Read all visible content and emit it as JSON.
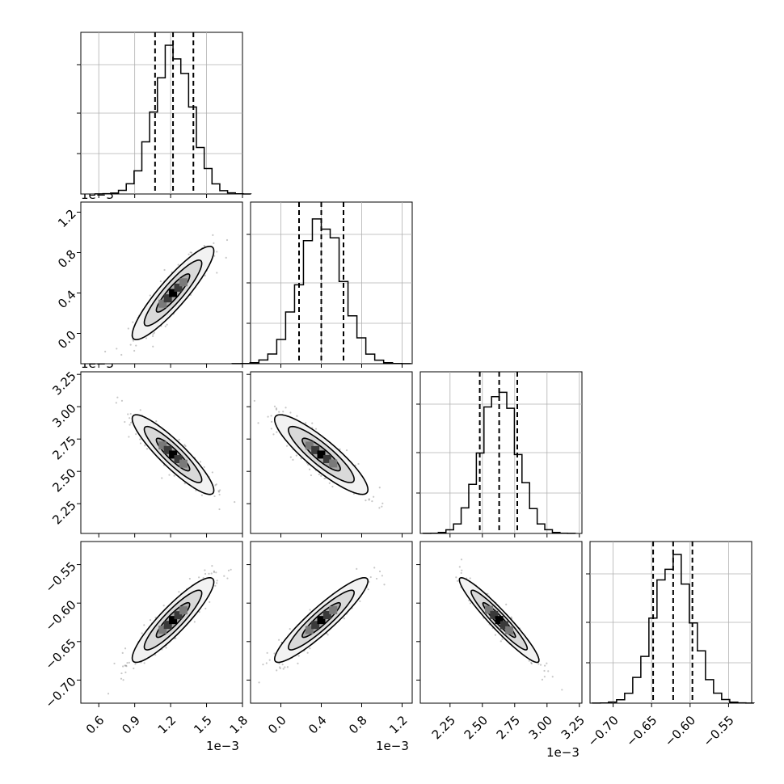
{
  "chart_data": {
    "type": "corner",
    "n_params": 4,
    "offset_labels": {
      "p0": "1e−3",
      "p1": "1e−3",
      "p2": "1e−3",
      "p3": ""
    },
    "ranges": [
      [
        0.45,
        1.8
      ],
      [
        -0.3,
        1.3
      ],
      [
        2.02,
        3.27
      ],
      [
        -0.73,
        -0.52
      ]
    ],
    "ticks": [
      {
        "values": [
          0.6,
          0.9,
          1.2,
          1.5,
          1.8
        ],
        "labels": [
          "0.6",
          "0.9",
          "1.2",
          "1.5",
          "1.8"
        ]
      },
      {
        "values": [
          0.0,
          0.4,
          0.8,
          1.2
        ],
        "labels": [
          "0.0",
          "0.4",
          "0.8",
          "1.2"
        ]
      },
      {
        "values": [
          2.25,
          2.5,
          2.75,
          3.0,
          3.25
        ],
        "labels": [
          "2.25",
          "2.50",
          "2.75",
          "3.00",
          "3.25"
        ]
      },
      {
        "values": [
          -0.7,
          -0.65,
          -0.6,
          -0.55
        ],
        "labels": [
          "−0.70",
          "−0.65",
          "−0.60",
          "−0.55"
        ]
      }
    ],
    "quantiles": [
      [
        1.07,
        1.22,
        1.39
      ],
      [
        0.18,
        0.4,
        0.62
      ],
      [
        2.48,
        2.63,
        2.77
      ],
      [
        -0.648,
        -0.622,
        -0.597
      ]
    ],
    "means": [
      1.22,
      0.4,
      2.63,
      -0.622
    ],
    "stds": [
      0.155,
      0.21,
      0.14,
      0.025
    ],
    "correlations": [
      [
        1.0,
        0.9,
        -0.9,
        0.9
      ],
      [
        0.9,
        1.0,
        -0.88,
        0.92
      ],
      [
        -0.9,
        -0.88,
        1.0,
        -0.95
      ],
      [
        0.9,
        0.92,
        -0.95,
        1.0
      ]
    ],
    "grid": true,
    "histogram_style": "step",
    "quantile_line_style": "dashed",
    "contour_style": "black lines with gray filled density"
  }
}
